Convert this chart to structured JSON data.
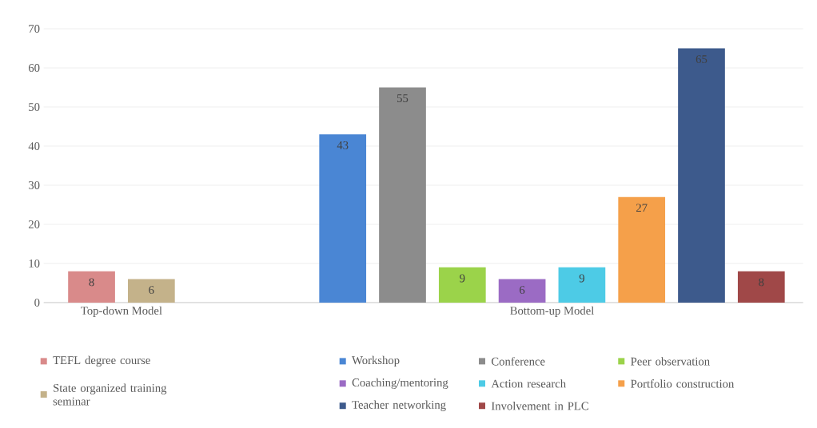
{
  "chart_data": {
    "type": "bar",
    "categories": [
      "Top-down Model",
      "Bottom-up Model"
    ],
    "series": [
      {
        "name": "TEFL degree course",
        "color": "#d98a8a",
        "values": [
          8,
          null
        ]
      },
      {
        "name": "State organized training seminar",
        "color": "#c4b28a",
        "values": [
          6,
          null
        ]
      },
      {
        "name": "Workshop",
        "color": "#4a86d4",
        "values": [
          null,
          43
        ]
      },
      {
        "name": "Conference",
        "color": "#8c8c8c",
        "values": [
          null,
          55
        ]
      },
      {
        "name": "Peer observation",
        "color": "#9bd34a",
        "values": [
          null,
          9
        ]
      },
      {
        "name": "Coaching/mentoring",
        "color": "#9b6bc4",
        "values": [
          null,
          6
        ]
      },
      {
        "name": "Action research",
        "color": "#4dcbe6",
        "values": [
          null,
          9
        ]
      },
      {
        "name": "Portfolio construction",
        "color": "#f5a04a",
        "values": [
          null,
          27
        ]
      },
      {
        "name": "Teacher networking",
        "color": "#3d5a8c",
        "values": [
          null,
          65
        ]
      },
      {
        "name": "Involvement in PLC",
        "color": "#a04848",
        "values": [
          null,
          8
        ]
      }
    ],
    "ylim": [
      0,
      70
    ],
    "yticks": [
      0,
      10,
      20,
      30,
      40,
      50,
      60,
      70
    ],
    "grid": "y",
    "data_labels": true,
    "legend": "bottom"
  }
}
